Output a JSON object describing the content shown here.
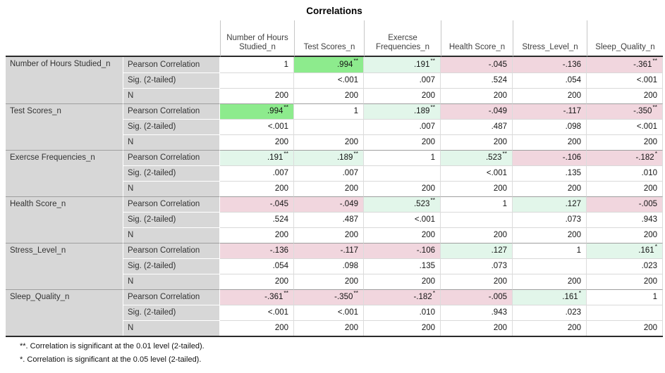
{
  "title": "Correlations",
  "columns": [
    "Number of Hours Studied_n",
    "Test Scores_n",
    "Exercse Frequencies_n",
    "Health Score_n",
    "Stress_Level_n",
    "Sleep_Quality_n"
  ],
  "stat_labels": [
    "Pearson Correlation",
    "Sig. (2-tailed)",
    "N"
  ],
  "colors": {
    "green": "#8deb8d",
    "mint": "#e2f6ea",
    "pink": "#f1d6de",
    "white": "#ffffff",
    "label_bg": "#d7d7d7"
  },
  "rows": [
    {
      "variable": "Number of Hours Studied_n",
      "pearson": [
        {
          "value": "1",
          "marker": "",
          "bg": "white"
        },
        {
          "value": ".994",
          "marker": "**",
          "bg": "green"
        },
        {
          "value": ".191",
          "marker": "**",
          "bg": "mint"
        },
        {
          "value": "-.045",
          "marker": "",
          "bg": "pink"
        },
        {
          "value": "-.136",
          "marker": "",
          "bg": "pink"
        },
        {
          "value": "-.361",
          "marker": "**",
          "bg": "pink"
        }
      ],
      "sig": [
        "",
        "<.001",
        ".007",
        ".524",
        ".054",
        "<.001"
      ],
      "n": [
        "200",
        "200",
        "200",
        "200",
        "200",
        "200"
      ]
    },
    {
      "variable": "Test Scores_n",
      "pearson": [
        {
          "value": ".994",
          "marker": "**",
          "bg": "green"
        },
        {
          "value": "1",
          "marker": "",
          "bg": "white"
        },
        {
          "value": ".189",
          "marker": "**",
          "bg": "mint"
        },
        {
          "value": "-.049",
          "marker": "",
          "bg": "pink"
        },
        {
          "value": "-.117",
          "marker": "",
          "bg": "pink"
        },
        {
          "value": "-.350",
          "marker": "**",
          "bg": "pink"
        }
      ],
      "sig": [
        "<.001",
        "",
        ".007",
        ".487",
        ".098",
        "<.001"
      ],
      "n": [
        "200",
        "200",
        "200",
        "200",
        "200",
        "200"
      ]
    },
    {
      "variable": "Exercse Frequencies_n",
      "pearson": [
        {
          "value": ".191",
          "marker": "**",
          "bg": "mint"
        },
        {
          "value": ".189",
          "marker": "**",
          "bg": "mint"
        },
        {
          "value": "1",
          "marker": "",
          "bg": "white"
        },
        {
          "value": ".523",
          "marker": "**",
          "bg": "mint"
        },
        {
          "value": "-.106",
          "marker": "",
          "bg": "pink"
        },
        {
          "value": "-.182",
          "marker": "*",
          "bg": "pink"
        }
      ],
      "sig": [
        ".007",
        ".007",
        "",
        "<.001",
        ".135",
        ".010"
      ],
      "n": [
        "200",
        "200",
        "200",
        "200",
        "200",
        "200"
      ]
    },
    {
      "variable": "Health Score_n",
      "pearson": [
        {
          "value": "-.045",
          "marker": "",
          "bg": "pink"
        },
        {
          "value": "-.049",
          "marker": "",
          "bg": "pink"
        },
        {
          "value": ".523",
          "marker": "**",
          "bg": "mint"
        },
        {
          "value": "1",
          "marker": "",
          "bg": "white"
        },
        {
          "value": ".127",
          "marker": "",
          "bg": "mint"
        },
        {
          "value": "-.005",
          "marker": "",
          "bg": "pink"
        }
      ],
      "sig": [
        ".524",
        ".487",
        "<.001",
        "",
        ".073",
        ".943"
      ],
      "n": [
        "200",
        "200",
        "200",
        "200",
        "200",
        "200"
      ]
    },
    {
      "variable": "Stress_Level_n",
      "pearson": [
        {
          "value": "-.136",
          "marker": "",
          "bg": "pink"
        },
        {
          "value": "-.117",
          "marker": "",
          "bg": "pink"
        },
        {
          "value": "-.106",
          "marker": "",
          "bg": "pink"
        },
        {
          "value": ".127",
          "marker": "",
          "bg": "mint"
        },
        {
          "value": "1",
          "marker": "",
          "bg": "white"
        },
        {
          "value": ".161",
          "marker": "*",
          "bg": "mint"
        }
      ],
      "sig": [
        ".054",
        ".098",
        ".135",
        ".073",
        "",
        ".023"
      ],
      "n": [
        "200",
        "200",
        "200",
        "200",
        "200",
        "200"
      ]
    },
    {
      "variable": "Sleep_Quality_n",
      "pearson": [
        {
          "value": "-.361",
          "marker": "**",
          "bg": "pink"
        },
        {
          "value": "-.350",
          "marker": "**",
          "bg": "pink"
        },
        {
          "value": "-.182",
          "marker": "*",
          "bg": "pink"
        },
        {
          "value": "-.005",
          "marker": "",
          "bg": "pink"
        },
        {
          "value": ".161",
          "marker": "*",
          "bg": "mint"
        },
        {
          "value": "1",
          "marker": "",
          "bg": "white"
        }
      ],
      "sig": [
        "<.001",
        "<.001",
        ".010",
        ".943",
        ".023",
        ""
      ],
      "n": [
        "200",
        "200",
        "200",
        "200",
        "200",
        "200"
      ]
    }
  ],
  "footnotes": [
    "**. Correlation is significant at the 0.01 level (2-tailed).",
    "*. Correlation is significant at the 0.05 level (2-tailed)."
  ]
}
